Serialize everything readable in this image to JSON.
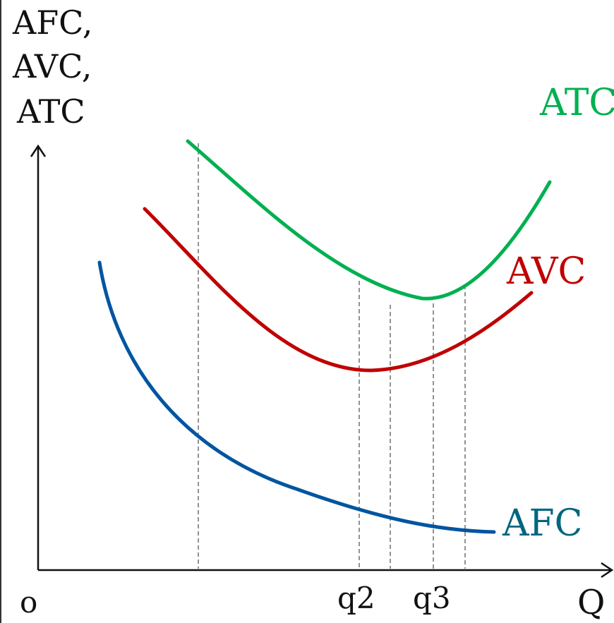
{
  "chart_data": {
    "type": "line",
    "title": "",
    "ylabel": [
      "AFC,",
      "AVC,",
      "ATC"
    ],
    "xlabel": "Q",
    "origin_label": "o",
    "grid": false,
    "x_tick_labels": [
      "q2",
      "q3"
    ],
    "series": [
      {
        "name": "ATC",
        "color": "#00B050"
      },
      {
        "name": "AVC",
        "color": "#C00000"
      },
      {
        "name": "AFC",
        "color": "#0055A0"
      }
    ],
    "afc_label_color": "#00667F",
    "guide_color": "#777777"
  }
}
